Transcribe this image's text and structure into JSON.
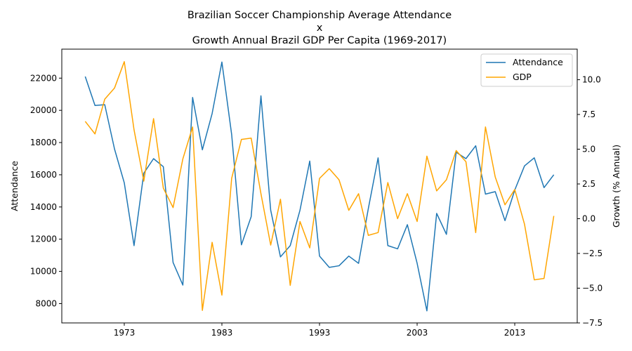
{
  "chart_data": {
    "type": "line",
    "title": [
      "Brazilian Soccer Championship Average Attendance",
      "x",
      "Growth Annual Brazil GDP Per Capita (1969-2017)"
    ],
    "xlabel": "",
    "ylabel_left": "Attendance",
    "ylabel_right": "Growth (% Annual)",
    "xlim": [
      1966.6,
      2019.4
    ],
    "ylim_left": [
      6800,
      23800
    ],
    "ylim_right": [
      -7.5,
      12.2
    ],
    "x_ticks": [
      1973,
      1983,
      1993,
      2003,
      2013
    ],
    "y_ticks_left": [
      8000,
      10000,
      12000,
      14000,
      16000,
      18000,
      20000,
      22000
    ],
    "y_ticks_right": [
      -7.5,
      -5.0,
      -2.5,
      0.0,
      2.5,
      5.0,
      7.5,
      10.0
    ],
    "y_tick_labels_right": [
      "−7.5",
      "−5.0",
      "−2.5",
      "0.0",
      "2.5",
      "5.0",
      "7.5",
      "10.0"
    ],
    "grid": false,
    "legend_position": "top-right",
    "x": [
      1969,
      1970,
      1971,
      1972,
      1973,
      1974,
      1975,
      1976,
      1977,
      1978,
      1979,
      1980,
      1981,
      1982,
      1983,
      1984,
      1985,
      1986,
      1987,
      1988,
      1989,
      1990,
      1991,
      1992,
      1993,
      1994,
      1995,
      1996,
      1997,
      1998,
      1999,
      2000,
      2001,
      2002,
      2003,
      2004,
      2005,
      2006,
      2007,
      2008,
      2009,
      2010,
      2011,
      2012,
      2013,
      2014,
      2015,
      2016,
      2017
    ],
    "series": [
      {
        "name": "Attendance",
        "axis": "left",
        "color": "#1f77b4",
        "values": [
          22100,
          20300,
          20350,
          17600,
          15500,
          11600,
          16100,
          17000,
          16500,
          10550,
          9150,
          20800,
          17550,
          19800,
          23000,
          18500,
          11650,
          13400,
          20900,
          13800,
          10900,
          11600,
          13800,
          16850,
          10950,
          10250,
          10350,
          10950,
          10500,
          13900,
          17050,
          11600,
          11400,
          12900,
          10500,
          7550,
          13600,
          12300,
          17400,
          17000,
          17800,
          14800,
          14950,
          13150,
          15050,
          16550,
          17050,
          15200,
          16000
        ]
      },
      {
        "name": "GDP",
        "axis": "right",
        "color": "#ffa500",
        "values": [
          7.0,
          6.1,
          8.6,
          9.4,
          11.3,
          6.4,
          2.7,
          7.2,
          2.2,
          0.8,
          4.3,
          6.6,
          -6.6,
          -1.7,
          -5.5,
          2.9,
          5.7,
          5.8,
          1.8,
          -1.9,
          1.4,
          -4.8,
          -0.2,
          -2.1,
          2.9,
          3.6,
          2.8,
          0.6,
          1.8,
          -1.2,
          -1.0,
          2.6,
          0.0,
          1.8,
          -0.2,
          4.5,
          2.0,
          2.8,
          4.9,
          4.1,
          -1.0,
          6.6,
          3.0,
          1.0,
          2.1,
          -0.4,
          -4.4,
          -4.3,
          0.2
        ]
      }
    ]
  }
}
